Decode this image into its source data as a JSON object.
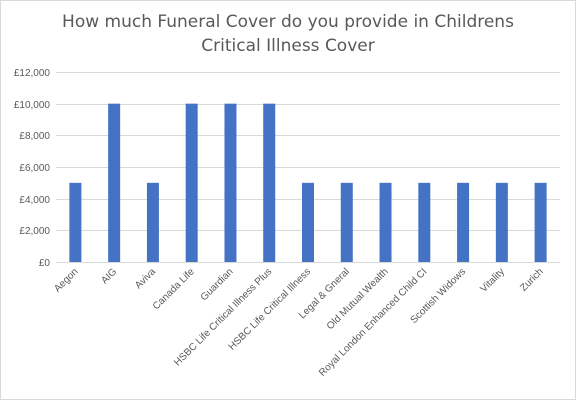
{
  "chart_data": {
    "type": "bar",
    "title_lines": [
      "How much Funeral Cover do you provide in Childrens",
      "Critical Illness Cover"
    ],
    "categories": [
      "Aegon",
      "AIG",
      "Aviva",
      "Canada Life",
      "Guardian",
      "HSBC Life Critical Illness Plus",
      "HSBC Life Critical Illness",
      "Legal & Gneral",
      "Old Mutual Wealth",
      "Royal London Enhanced Child CI",
      "Scottish Widows",
      "Vitality",
      "Zurich"
    ],
    "values": [
      5000,
      10000,
      5000,
      10000,
      10000,
      10000,
      5000,
      5000,
      5000,
      5000,
      5000,
      5000,
      5000
    ],
    "ylim": [
      0,
      12000
    ],
    "yticks": [
      0,
      2000,
      4000,
      6000,
      8000,
      10000,
      12000
    ],
    "ytick_labels": [
      "£0",
      "£2,000",
      "£4,000",
      "£6,000",
      "£8,000",
      "£10,000",
      "£12,000"
    ],
    "grid": true,
    "legend": "none",
    "bar_color": "#4472c4",
    "grid_color": "#d9d9d9"
  }
}
